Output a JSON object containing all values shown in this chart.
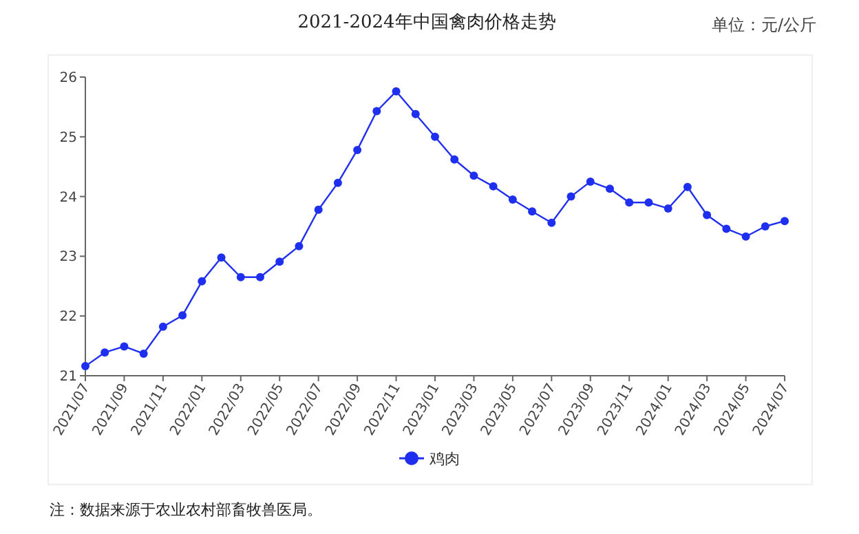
{
  "chart_data": {
    "type": "line",
    "title": "2021-2024年中国禽肉价格走势",
    "subtitle": "单位：元/公斤",
    "categories": [
      "2021/07",
      null,
      "2021/09",
      null,
      "2021/11",
      null,
      "2022/01",
      null,
      "2022/03",
      null,
      "2022/05",
      null,
      "2022/07",
      null,
      "2022/09",
      null,
      "2022/11",
      null,
      "2023/01",
      null,
      "2023/03",
      null,
      "2023/05",
      null,
      "2023/07",
      null,
      "2023/09",
      null,
      "2023/11",
      null,
      "2024/01",
      null,
      "2024/03",
      null,
      "2024/05",
      null,
      "2024/07"
    ],
    "series": [
      {
        "name": "鸡肉",
        "color": "#1f2ff0",
        "values": [
          21.16,
          21.39,
          21.49,
          21.37,
          21.82,
          22.01,
          22.58,
          22.98,
          22.65,
          22.65,
          22.91,
          23.17,
          23.78,
          24.23,
          24.78,
          25.43,
          25.76,
          25.38,
          25.0,
          24.62,
          24.35,
          24.17,
          23.95,
          23.75,
          23.56,
          24.0,
          24.25,
          24.13,
          23.9,
          23.9,
          23.8,
          24.16,
          23.69,
          23.46,
          23.33,
          23.5,
          23.59
        ]
      }
    ],
    "ylim": [
      21,
      26
    ],
    "yticks": [
      21,
      22,
      23,
      24,
      25,
      26
    ],
    "grid": false,
    "legend": "bottom",
    "marker": "circle",
    "line_style": "solid",
    "annotations": [
      "注：数据来源于农业农村部畜牧兽医局。"
    ]
  }
}
